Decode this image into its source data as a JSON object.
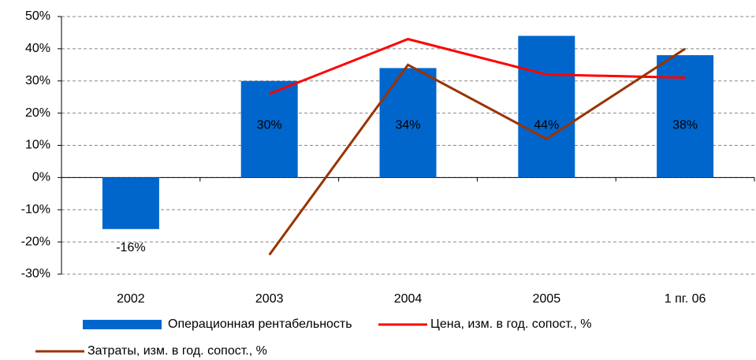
{
  "chart_data": {
    "type": "bar",
    "categories": [
      "2002",
      "2003",
      "2004",
      "2005",
      "1 пг. 06"
    ],
    "series": [
      {
        "name": "Операционная рентабельность",
        "type": "bar",
        "color": "#0066cc",
        "values": [
          -16,
          30,
          34,
          44,
          38
        ],
        "value_labels": [
          "-16%",
          "30%",
          "34%",
          "44%",
          "38%"
        ]
      },
      {
        "name": "Цена, изм. в год. сопост., %",
        "type": "line",
        "color": "#ff0000",
        "values": [
          null,
          26,
          43,
          32,
          31
        ]
      },
      {
        "name": "Затраты, изм. в год. сопост., %",
        "type": "line",
        "color": "#993300",
        "values": [
          null,
          -24,
          35,
          12,
          40
        ]
      }
    ],
    "ylim": [
      -30,
      50
    ],
    "yticks": [
      {
        "value": -30,
        "label": "-30%"
      },
      {
        "value": -20,
        "label": "-20%"
      },
      {
        "value": -10,
        "label": "-10%"
      },
      {
        "value": 0,
        "label": "0%"
      },
      {
        "value": 10,
        "label": "10%"
      },
      {
        "value": 20,
        "label": "20%"
      },
      {
        "value": 30,
        "label": "30%"
      },
      {
        "value": 40,
        "label": "40%"
      },
      {
        "value": 50,
        "label": "50%"
      }
    ],
    "grid": true
  }
}
